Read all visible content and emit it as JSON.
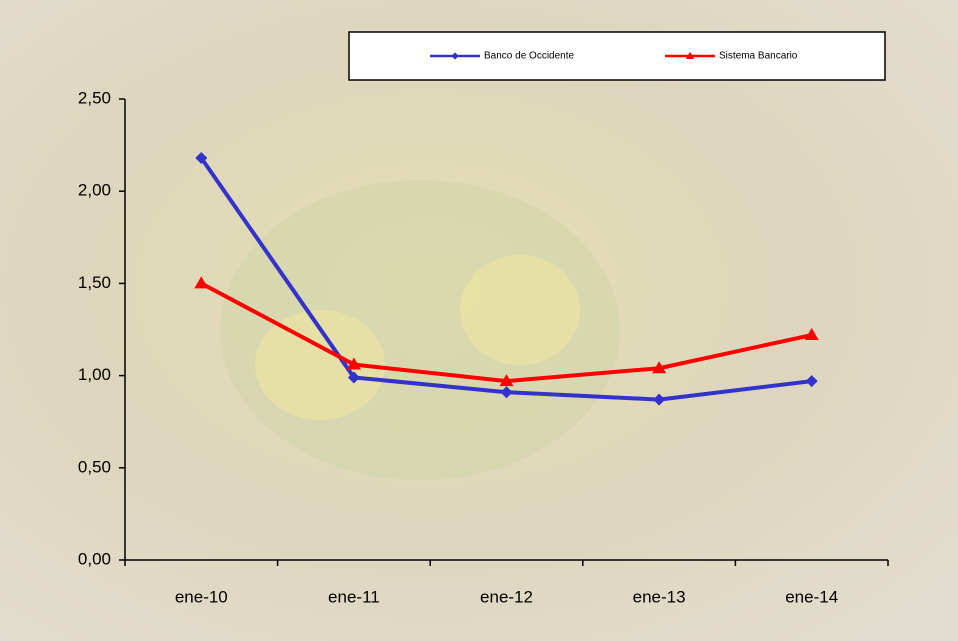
{
  "chart_data": {
    "type": "line",
    "categories": [
      "ene-10",
      "ene-11",
      "ene-12",
      "ene-13",
      "ene-14"
    ],
    "series": [
      {
        "name": "Banco de Occidente",
        "color": "#3333cc",
        "marker": "diamond",
        "values": [
          2.18,
          0.99,
          0.91,
          0.87,
          0.97
        ]
      },
      {
        "name": "Sistema Bancario",
        "color": "#ff0000",
        "marker": "triangle",
        "values": [
          1.5,
          1.06,
          0.97,
          1.04,
          1.22
        ]
      }
    ],
    "ylim": [
      0,
      2.5
    ],
    "yticks": [
      {
        "value": 0,
        "label": "0,00"
      },
      {
        "value": 0.5,
        "label": "0,50"
      },
      {
        "value": 1,
        "label": "1,00"
      },
      {
        "value": 1.5,
        "label": "1,50"
      },
      {
        "value": 2,
        "label": "2,00"
      },
      {
        "value": 2.5,
        "label": "2,50"
      }
    ],
    "grid": false
  }
}
